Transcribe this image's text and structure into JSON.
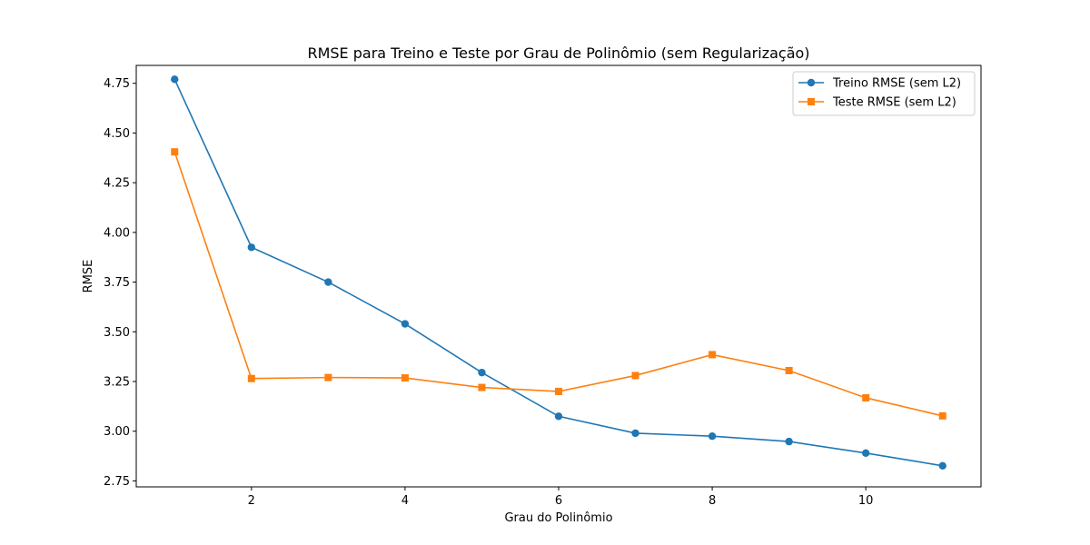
{
  "chart_data": {
    "type": "line",
    "title": "RMSE para Treino e Teste por Grau de Polinômio (sem Regularização)",
    "xlabel": "Grau do Polinômio",
    "ylabel": "RMSE",
    "xlim": [
      0.5,
      11.5
    ],
    "ylim": [
      2.72,
      4.84
    ],
    "xticks": [
      2,
      4,
      6,
      8,
      10
    ],
    "yticks": [
      2.75,
      3.0,
      3.25,
      3.5,
      3.75,
      4.0,
      4.25,
      4.5,
      4.75
    ],
    "xtick_labels": [
      "2",
      "4",
      "6",
      "8",
      "10"
    ],
    "ytick_labels": [
      "2.75",
      "3.00",
      "3.25",
      "3.50",
      "3.75",
      "4.00",
      "4.25",
      "4.50",
      "4.75"
    ],
    "grid": false,
    "legend": "top-right",
    "x": [
      1,
      2,
      3,
      4,
      5,
      6,
      7,
      8,
      9,
      10,
      11
    ],
    "series": [
      {
        "name": "Treino RMSE (sem L2)",
        "color": "#1f77b4",
        "marker": "circle",
        "values": [
          4.77,
          3.925,
          3.75,
          3.54,
          3.295,
          3.075,
          2.99,
          2.975,
          2.948,
          2.89,
          2.826
        ]
      },
      {
        "name": "Teste RMSE (sem L2)",
        "color": "#ff7f0e",
        "marker": "square",
        "values": [
          4.405,
          3.265,
          3.27,
          3.268,
          3.22,
          3.2,
          3.28,
          3.385,
          3.305,
          3.168,
          3.077
        ]
      }
    ]
  }
}
